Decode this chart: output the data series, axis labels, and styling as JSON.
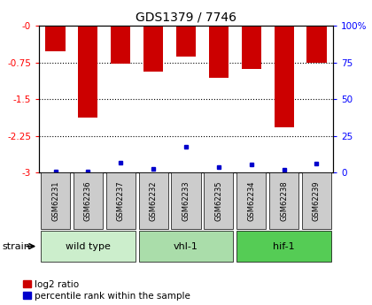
{
  "title": "GDS1379 / 7746",
  "samples": [
    "GSM62231",
    "GSM62236",
    "GSM62237",
    "GSM62232",
    "GSM62233",
    "GSM62235",
    "GSM62234",
    "GSM62238",
    "GSM62239"
  ],
  "log2_ratio": [
    -0.52,
    -1.87,
    -0.77,
    -0.93,
    -0.62,
    -1.06,
    -0.88,
    -2.08,
    -0.75
  ],
  "percentile_rank": [
    0.3,
    0.8,
    6.5,
    2.5,
    17.5,
    3.5,
    5.5,
    1.5,
    6.0
  ],
  "bar_color": "#cc0000",
  "dot_color": "#0000cc",
  "ylim_left": [
    -3.0,
    0.0
  ],
  "ylim_right": [
    0,
    100
  ],
  "yticks_left": [
    0.0,
    -0.75,
    -1.5,
    -2.25,
    -3.0
  ],
  "ytick_labels_left": [
    "-0",
    "-0.75",
    "-1.5",
    "-2.25",
    "-3"
  ],
  "yticks_right": [
    0,
    25,
    50,
    75,
    100
  ],
  "ytick_labels_right": [
    "0",
    "25",
    "50",
    "75",
    "100%"
  ],
  "groups": [
    {
      "label": "wild type",
      "indices": [
        0,
        1,
        2
      ],
      "color": "#cceecc"
    },
    {
      "label": "vhl-1",
      "indices": [
        3,
        4,
        5
      ],
      "color": "#aaddaa"
    },
    {
      "label": "hif-1",
      "indices": [
        6,
        7,
        8
      ],
      "color": "#55cc55"
    }
  ],
  "strain_label": "strain",
  "legend_log2": "log2 ratio",
  "legend_pct": "percentile rank within the sample",
  "bar_color_legend": "#cc0000",
  "dot_color_legend": "#0000cc"
}
